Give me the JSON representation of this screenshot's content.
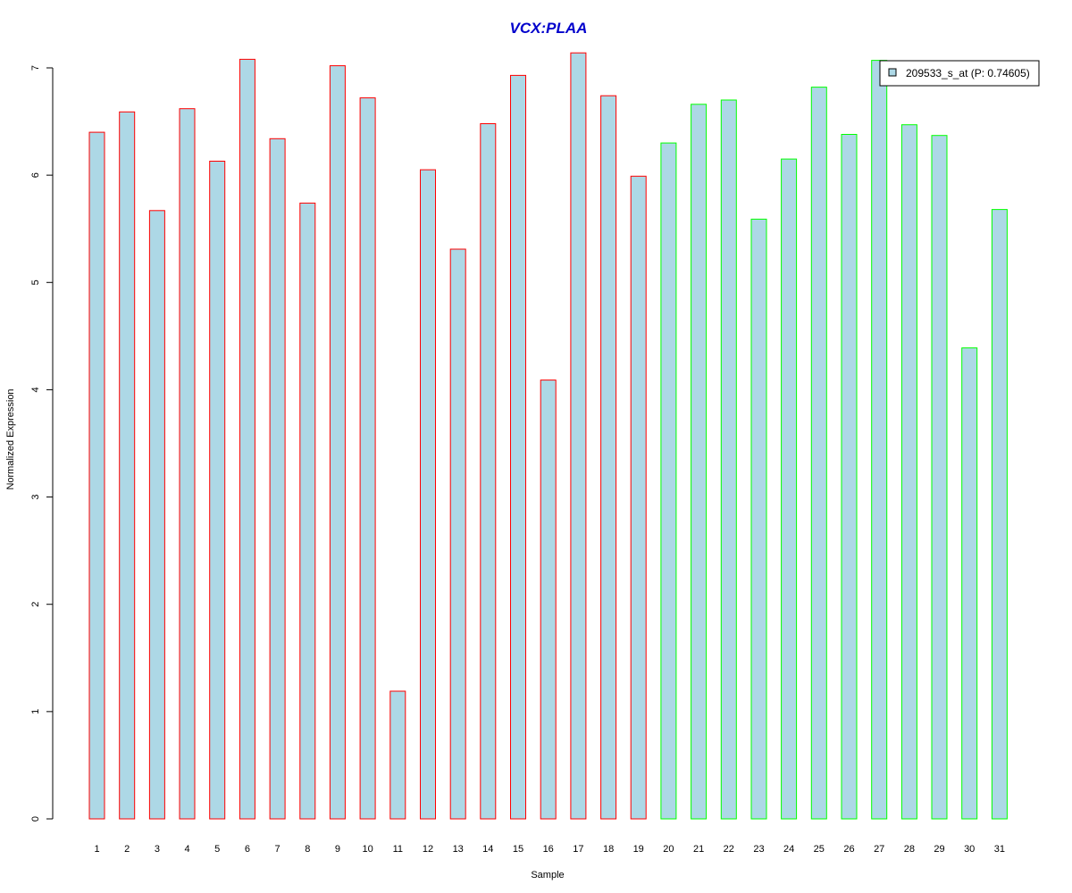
{
  "chart_data": {
    "type": "bar",
    "title": "VCX:PLAA",
    "xlabel": "Sample",
    "ylabel": "Normalized Expression",
    "ylim": [
      0,
      7
    ],
    "yticks": [
      0,
      1,
      2,
      3,
      4,
      5,
      6,
      7
    ],
    "categories": [
      "1",
      "2",
      "3",
      "4",
      "5",
      "6",
      "7",
      "8",
      "9",
      "10",
      "11",
      "12",
      "13",
      "14",
      "15",
      "16",
      "17",
      "18",
      "19",
      "20",
      "21",
      "22",
      "23",
      "24",
      "25",
      "26",
      "27",
      "28",
      "29",
      "30",
      "31"
    ],
    "values": [
      6.4,
      6.59,
      5.67,
      6.62,
      6.13,
      7.08,
      6.34,
      5.74,
      7.02,
      6.72,
      1.19,
      6.05,
      5.31,
      6.48,
      6.93,
      4.09,
      7.14,
      6.74,
      5.99,
      6.3,
      6.66,
      6.7,
      5.59,
      6.15,
      6.82,
      6.38,
      7.07,
      6.47,
      6.37,
      4.39,
      5.68
    ],
    "groups": [
      1,
      1,
      1,
      1,
      1,
      1,
      1,
      1,
      1,
      1,
      1,
      1,
      1,
      1,
      1,
      1,
      1,
      1,
      1,
      2,
      2,
      2,
      2,
      2,
      2,
      2,
      2,
      2,
      2,
      2,
      2
    ],
    "legend": {
      "position": "top-right",
      "entries": [
        "209533_s_at (P: 0.74605)"
      ]
    },
    "grid": false
  },
  "colors": {
    "title": "#0000CC",
    "bar_fill": "#ADD8E6",
    "group1_border": "#FF0000",
    "group2_border": "#00FF00",
    "axis": "#000000"
  }
}
